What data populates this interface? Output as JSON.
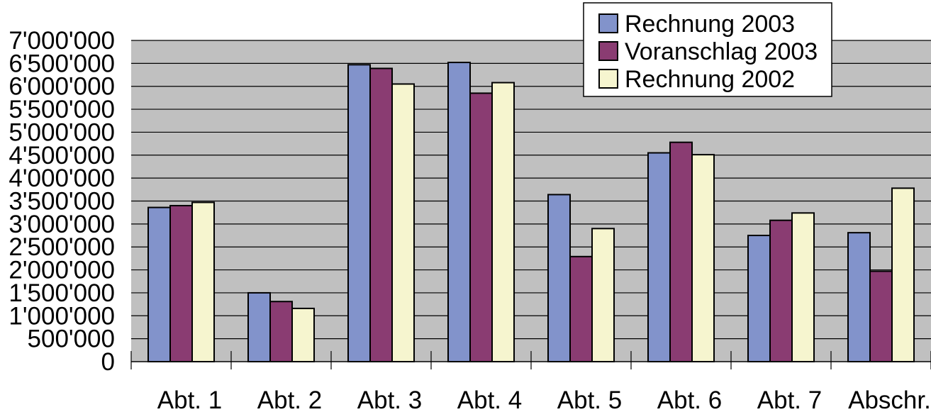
{
  "chart_data": {
    "type": "bar",
    "title": "",
    "xlabel": "",
    "ylabel": "",
    "categories": [
      "Abt. 1",
      "Abt. 2",
      "Abt. 3",
      "Abt. 4",
      "Abt. 5",
      "Abt. 6",
      "Abt. 7",
      "Abschr."
    ],
    "series": [
      {
        "name": "Rechnung 2003",
        "color": "#8293CB",
        "values": [
          3360000,
          1500000,
          6470000,
          6520000,
          3640000,
          4550000,
          2750000,
          2810000
        ]
      },
      {
        "name": "Voranschlag 2003",
        "color": "#8A3C72",
        "values": [
          3400000,
          1310000,
          6390000,
          5850000,
          2290000,
          4780000,
          3080000,
          1970000
        ]
      },
      {
        "name": "Rechnung 2002",
        "color": "#F6F5CF",
        "values": [
          3470000,
          1160000,
          6050000,
          6080000,
          2900000,
          4510000,
          3240000,
          3780000
        ]
      }
    ],
    "ylim": [
      0,
      7000000
    ],
    "ytick_step": 500000,
    "y_tick_labels": [
      "0",
      "500'000",
      "1'000'000",
      "1'500'000",
      "2'000'000",
      "2'500'000",
      "3'000'000",
      "3'500'000",
      "4'000'000",
      "4'500'000",
      "5'000'000",
      "5'500'000",
      "6'000'000",
      "6'500'000",
      "7'000'000"
    ],
    "grid": true,
    "plot_background": "#C0C0C0",
    "legend_position": "top-right"
  }
}
